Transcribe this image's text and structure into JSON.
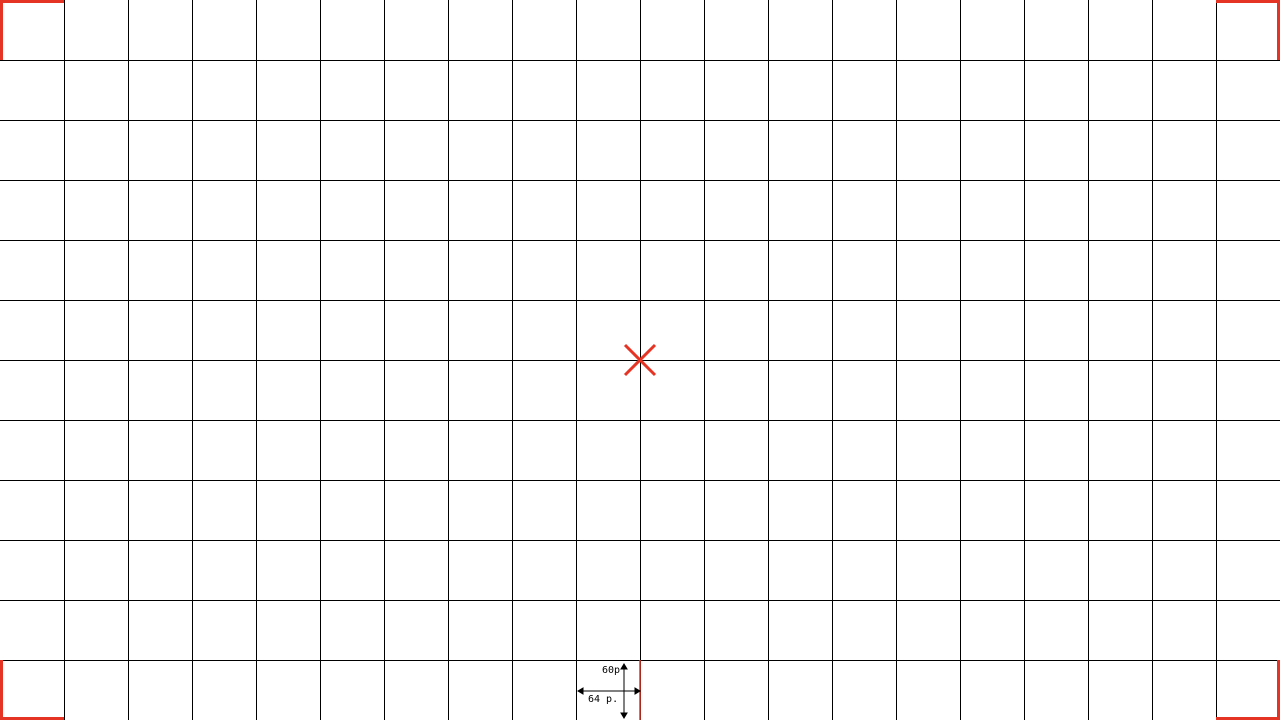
{
  "grid": {
    "columns": 20,
    "rows": 12,
    "line_color": "#000000"
  },
  "markers": {
    "accent_color": "#e53424",
    "center_icon": "x-mark-icon",
    "corner_icon": "corner-bracket-icon"
  },
  "legend": {
    "height_label": "60p",
    "width_label": "64 p.",
    "icon": "dimension-arrows-icon"
  }
}
